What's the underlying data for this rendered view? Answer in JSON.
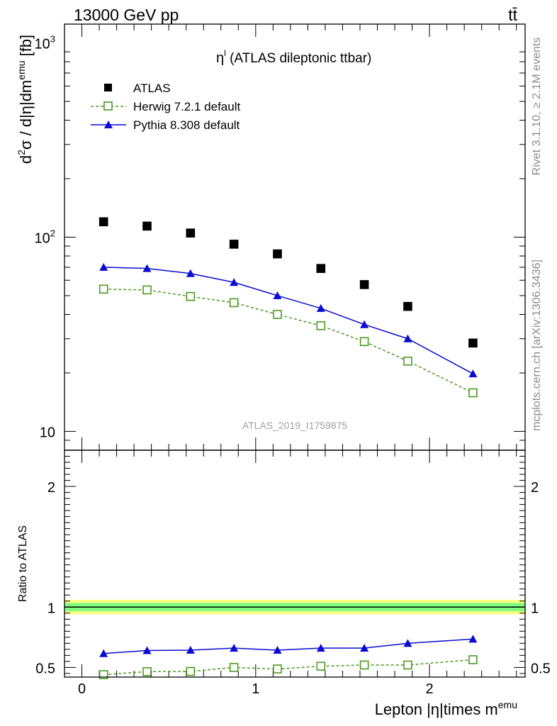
{
  "header": {
    "left": "13000 GeV pp",
    "right": "tt̄"
  },
  "side_labels": {
    "top": "Rivet 3.1.10, ≥ 2.1M events",
    "bottom": "mcplots.cern.ch [arXiv:1306.3436]"
  },
  "colors": {
    "atlas": "#000000",
    "herwig": "#4a9a1e",
    "pythia": "#0a0ad2",
    "band_outer": "#ffff80",
    "band_inner": "#80ff80"
  },
  "chart_data": [
    {
      "type": "scatter",
      "panel": "main",
      "title": "η^l (ATLAS dileptonic ttbar)",
      "title_main": "η",
      "title_sup": "l",
      "title_rest": " (ATLAS dileptonic ttbar)",
      "ylabel": "d²σ / d|η|dm^emu [fb]",
      "ylabel_parts": [
        "d",
        "2",
        "σ / d|η|dm",
        "emu",
        " [fb]"
      ],
      "yscale": "log",
      "ylim": [
        8,
        1250
      ],
      "xlim": [
        -0.1,
        2.55
      ],
      "ytick_labels": [
        "10",
        "10",
        "10"
      ],
      "ytick_exps": [
        "",
        "2",
        "3"
      ],
      "yticks": [
        10,
        100,
        1000
      ],
      "watermark": "ATLAS_2019_I1759875",
      "legend_position": "top-left",
      "x": [
        0.125,
        0.375,
        0.625,
        0.875,
        1.125,
        1.375,
        1.625,
        1.875,
        2.25
      ],
      "series": [
        {
          "name": "ATLAS",
          "key": "atlas",
          "values": [
            120,
            114,
            105,
            92,
            82,
            69,
            57,
            44,
            28.5
          ]
        },
        {
          "name": "Herwig 7.2.1 default",
          "key": "herwig",
          "values": [
            54,
            53.5,
            49.5,
            46,
            40,
            35,
            29,
            23,
            15.8
          ]
        },
        {
          "name": "Pythia 8.308 default",
          "key": "pythia",
          "values": [
            70,
            69,
            65,
            58.5,
            50,
            43,
            35.5,
            30,
            19.8
          ]
        }
      ]
    },
    {
      "type": "line",
      "panel": "ratio",
      "ylabel": "Ratio to ATLAS",
      "ylim": [
        0.42,
        2.3
      ],
      "yticks": [
        0.5,
        1,
        2
      ],
      "ytick_labels": [
        "0.5",
        "1",
        "2"
      ],
      "xlabel": "Lepton |η|times m^emu",
      "xlabel_main": "Lepton |η|times m",
      "xlabel_sup": "emu",
      "xticks": [
        0,
        1,
        2
      ],
      "xtick_labels": [
        "0",
        "1",
        "2"
      ],
      "xlim": [
        -0.1,
        2.55
      ],
      "x": [
        0.125,
        0.375,
        0.625,
        0.875,
        1.125,
        1.375,
        1.625,
        1.875,
        2.25
      ],
      "band": {
        "outer": [
          0.94,
          1.06
        ],
        "inner": [
          0.965,
          1.035
        ]
      },
      "reference": 1,
      "series": [
        {
          "name": "Herwig 7.2.1 default",
          "key": "herwig",
          "values": [
            0.44,
            0.465,
            0.467,
            0.5,
            0.487,
            0.51,
            0.52,
            0.52,
            0.564
          ]
        },
        {
          "name": "Pythia 8.308 default",
          "key": "pythia",
          "values": [
            0.615,
            0.64,
            0.643,
            0.66,
            0.643,
            0.66,
            0.66,
            0.7,
            0.735
          ]
        }
      ]
    }
  ]
}
